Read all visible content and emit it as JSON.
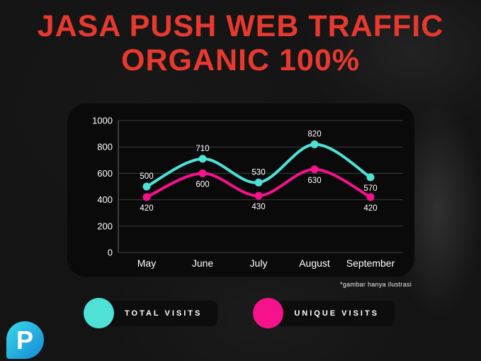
{
  "page": {
    "title_line1": "JASA PUSH WEB TRAFFIC",
    "title_line2": "ORGANIC 100%",
    "note": "*gambar hanya ilustrasi"
  },
  "colors": {
    "accent_red": "#e8392f",
    "total_visits": "#4fe0d6",
    "unique_visits": "#f5128b",
    "panel_bg": "#0a0a0a",
    "page_bg": "#141414",
    "grid": "#3d3d3d",
    "text": "#ffffff"
  },
  "chart_data": {
    "type": "line",
    "categories": [
      "May",
      "June",
      "July",
      "August",
      "September"
    ],
    "series": [
      {
        "name": "Total Visits",
        "color": "#4fe0d6",
        "values": [
          500,
          710,
          530,
          820,
          570
        ],
        "label_positions": [
          "above",
          "above",
          "above",
          "above",
          "below"
        ]
      },
      {
        "name": "Unique Visits",
        "color": "#f5128b",
        "values": [
          420,
          600,
          430,
          630,
          420
        ],
        "label_positions": [
          "below",
          "below",
          "below",
          "below",
          "below"
        ]
      }
    ],
    "title": "",
    "xlabel": "",
    "ylabel": "",
    "ylim": [
      0,
      1000
    ],
    "yticks": [
      0,
      200,
      400,
      600,
      800,
      1000
    ],
    "grid": true,
    "legend_position": "bottom"
  },
  "legend": {
    "items": [
      {
        "label": "TOTAL VISITS",
        "color": "#4fe0d6"
      },
      {
        "label": "UNIQUE VISITS",
        "color": "#f5128b"
      }
    ]
  },
  "logo": {
    "letter": "P"
  }
}
